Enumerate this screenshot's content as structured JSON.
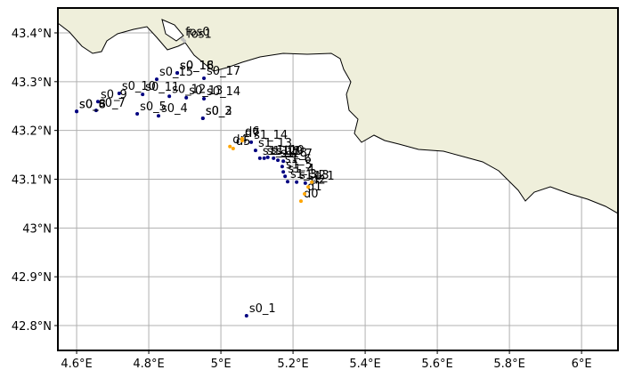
{
  "chart_data": {
    "type": "scatter",
    "grid": true,
    "xlim": [
      4.548,
      6.101
    ],
    "ylim": [
      42.749,
      43.451
    ],
    "xticks": [
      {
        "value": 4.6,
        "label": "4.6°E"
      },
      {
        "value": 4.8,
        "label": "4.8°E"
      },
      {
        "value": 5.0,
        "label": "5°E"
      },
      {
        "value": 5.2,
        "label": "5.2°E"
      },
      {
        "value": 5.4,
        "label": "5.4°E"
      },
      {
        "value": 5.6,
        "label": "5.6°E"
      },
      {
        "value": 5.8,
        "label": "5.8°E"
      },
      {
        "value": 6.0,
        "label": "6°E"
      }
    ],
    "yticks": [
      {
        "value": 42.8,
        "label": "42.8°N"
      },
      {
        "value": 42.9,
        "label": "42.9°N"
      },
      {
        "value": 43.0,
        "label": "43°N"
      },
      {
        "value": 43.1,
        "label": "43.1°N"
      },
      {
        "value": 43.2,
        "label": "43.2°N"
      },
      {
        "value": 43.3,
        "label": "43.3°N"
      },
      {
        "value": 43.4,
        "label": "43.4°N"
      }
    ],
    "series": [
      {
        "color": "#000080",
        "labels": [
          "s0_1",
          "s0_2",
          "s0_3",
          "s0_4",
          "s0_5",
          "s0_6",
          "s0_7",
          "s0_8",
          "s0_9",
          "s0_10",
          "s0_11",
          "s0_12",
          "s0_13",
          "s0_14",
          "s0_15",
          "s0_16",
          "s0_17",
          "s0_18"
        ],
        "x": [
          5.071,
          4.95,
          4.95,
          4.827,
          4.768,
          4.6,
          4.654,
          4.6,
          4.659,
          4.718,
          4.783,
          4.857,
          4.904,
          4.953,
          4.822,
          4.879,
          4.953,
          4.879
        ],
        "y": [
          42.82,
          43.225,
          43.225,
          43.23,
          43.234,
          43.239,
          43.241,
          43.239,
          43.259,
          43.276,
          43.274,
          43.27,
          43.267,
          43.265,
          43.305,
          43.318,
          43.307,
          43.318
        ]
      },
      {
        "color": "#000080",
        "labels": [
          "s1_1",
          "s1_2",
          "s1_3",
          "s1_4",
          "s1_5",
          "s1_6",
          "s1_7",
          "s1_8",
          "s1_9",
          "s1_10",
          "s1_11",
          "s1_12",
          "s1_13",
          "s1_14"
        ],
        "x": [
          5.234,
          5.21,
          5.185,
          5.178,
          5.173,
          5.17,
          5.173,
          5.158,
          5.146,
          5.13,
          5.12,
          5.108,
          5.096,
          5.084
        ],
        "y": [
          43.092,
          43.094,
          43.095,
          43.106,
          43.115,
          43.126,
          43.137,
          43.139,
          43.143,
          43.145,
          43.143,
          43.143,
          43.159,
          43.176
        ]
      },
      {
        "color": "#ffa500",
        "labels": [
          "d0",
          "d1",
          "d2",
          "d3",
          "d4",
          "d5",
          "d6",
          "d7"
        ],
        "x": [
          5.222,
          5.232,
          5.242,
          5.252,
          5.025,
          5.034,
          5.059,
          5.059
        ],
        "y": [
          43.055,
          43.07,
          43.084,
          43.094,
          43.167,
          43.163,
          43.183,
          43.179
        ]
      },
      {
        "color": "#c0c0c0",
        "labels": [
          "fos0",
          "fos1"
        ],
        "x": [
          4.894,
          4.899
        ],
        "y": [
          43.387,
          43.383
        ]
      }
    ]
  }
}
